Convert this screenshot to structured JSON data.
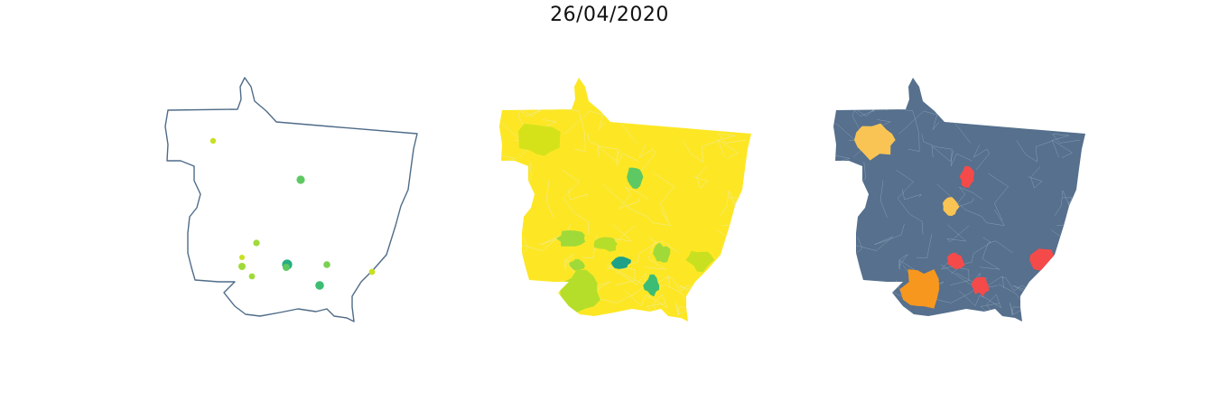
{
  "title": "26/04/2020",
  "colors": {
    "outline": "#4f6b88",
    "outline_fill": "#ffffff",
    "choropleth_base": "#fde725",
    "risk_base": "#56708d",
    "municipal_border": "#e8ecd8",
    "risk_border": "#9db0c4"
  },
  "point_markers": [
    {
      "color": "#c8e020",
      "size": 3.2
    },
    {
      "color": "#5ec962",
      "size": 4.6
    },
    {
      "color": "#a0da39",
      "size": 3.6
    },
    {
      "color": "#c8e020",
      "size": 3.0
    },
    {
      "color": "#a0da39",
      "size": 4.0
    },
    {
      "color": "#a0da39",
      "size": 3.4
    },
    {
      "color": "#27ad81",
      "size": 5.6
    },
    {
      "color": "#5ec962",
      "size": 4.0
    },
    {
      "color": "#7ad151",
      "size": 3.8
    },
    {
      "color": "#c8e020",
      "size": 3.4
    },
    {
      "color": "#3dbc74",
      "size": 4.8
    }
  ],
  "choropleth_regions": [
    {
      "color": "#d5e21a"
    },
    {
      "color": "#5ec962"
    },
    {
      "color": "#a0da39"
    },
    {
      "color": "#b5de2b"
    },
    {
      "color": "#1fa187"
    },
    {
      "color": "#a0da39"
    },
    {
      "color": "#b5de2b"
    },
    {
      "color": "#3dbc74"
    },
    {
      "color": "#a0da39"
    },
    {
      "color": "#c8e020"
    }
  ],
  "risk_regions": [
    {
      "color": "#f9c454"
    },
    {
      "color": "#f9c454"
    },
    {
      "color": "#f54a4a"
    },
    {
      "color": "#f7971e"
    },
    {
      "color": "#f54a4a"
    },
    {
      "color": "#f54a4a"
    },
    {
      "color": "#f54a4a"
    }
  ]
}
